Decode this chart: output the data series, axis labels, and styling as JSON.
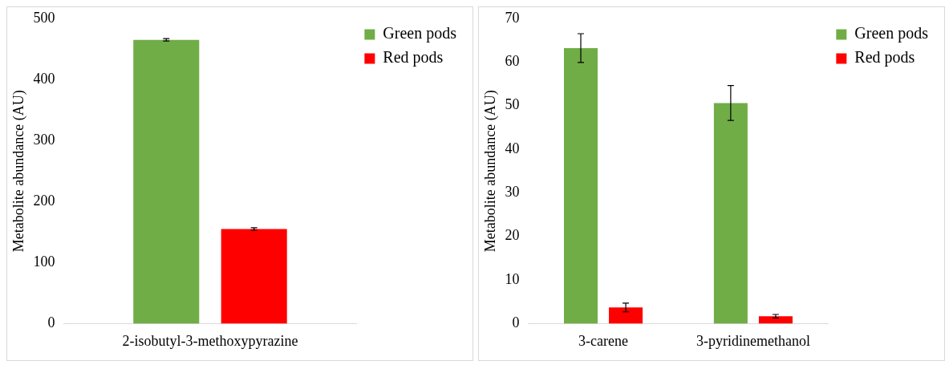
{
  "chart_data": [
    {
      "type": "bar",
      "ylabel": "Metabolite abundance (AU)",
      "categories": [
        "2-isobutyl-3-methoxypyrazine"
      ],
      "series": [
        {
          "name": "Green pods",
          "color": "#70ad47",
          "values": [
            465
          ],
          "errors": [
            2
          ]
        },
        {
          "name": "Red pods",
          "color": "#ff0000",
          "values": [
            155
          ],
          "errors": [
            2
          ]
        }
      ],
      "ylim": [
        0,
        500
      ],
      "yticks": [
        0,
        100,
        200,
        300,
        400,
        500
      ],
      "grid": false,
      "legend": "top right"
    },
    {
      "type": "bar",
      "ylabel": "Metabolite abundance (AU)",
      "categories": [
        "3-carene",
        "3-pyridinemethanol"
      ],
      "series": [
        {
          "name": "Green pods",
          "color": "#70ad47",
          "values": [
            63.2,
            50.6
          ],
          "errors": [
            3.3,
            4
          ]
        },
        {
          "name": "Red pods",
          "color": "#ff0000",
          "values": [
            3.7,
            1.7
          ],
          "errors": [
            1,
            0.4
          ]
        }
      ],
      "ylim": [
        0,
        70
      ],
      "yticks": [
        0,
        10,
        20,
        30,
        40,
        50,
        60,
        70
      ],
      "grid": false,
      "legend": "top right"
    }
  ]
}
